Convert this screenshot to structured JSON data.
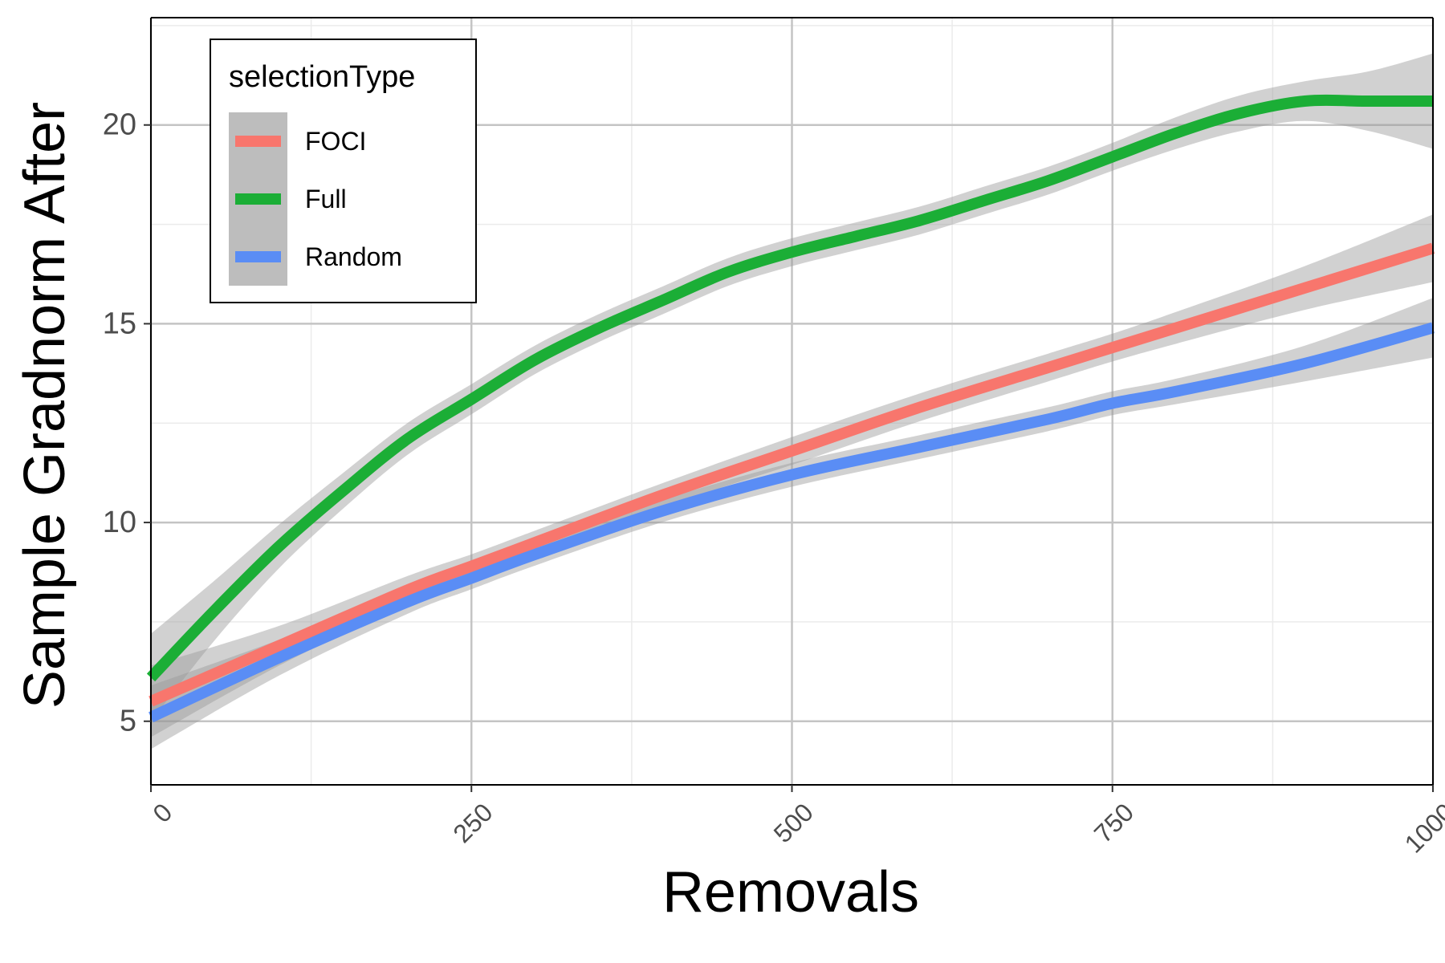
{
  "chart_data": {
    "type": "line",
    "xlabel": "Removals",
    "ylabel": "Sample Gradnorm After",
    "xlim": [
      0,
      1000
    ],
    "ylim": [
      3.4,
      22.7
    ],
    "x_ticks": [
      0,
      250,
      500,
      750,
      1000
    ],
    "x_tick_labels": [
      "0",
      "250",
      "500",
      "750",
      "1000"
    ],
    "y_ticks": [
      5,
      10,
      15,
      20
    ],
    "y_tick_labels": [
      "5",
      "10",
      "15",
      "20"
    ],
    "grid": true,
    "legend": {
      "title": "selectionType",
      "placement": "top-left (inside plot)",
      "entries": [
        "FOCI",
        "Full",
        "Random"
      ]
    },
    "series": [
      {
        "name": "FOCI",
        "color": "#F8766D",
        "x": [
          0,
          100,
          200,
          250,
          300,
          400,
          500,
          600,
          700,
          750,
          800,
          900,
          1000
        ],
        "y": [
          5.5,
          6.9,
          8.3,
          8.9,
          9.5,
          10.7,
          11.8,
          12.9,
          13.9,
          14.4,
          14.9,
          15.9,
          16.9
        ],
        "ci_halfwidth": [
          0.9,
          0.5,
          0.35,
          0.3,
          0.3,
          0.3,
          0.35,
          0.35,
          0.35,
          0.35,
          0.4,
          0.55,
          0.85
        ]
      },
      {
        "name": "Full",
        "color": "#1BAE36",
        "x": [
          0,
          50,
          100,
          150,
          200,
          250,
          300,
          350,
          400,
          450,
          500,
          550,
          600,
          650,
          700,
          750,
          800,
          850,
          900,
          950,
          1000
        ],
        "y": [
          6.1,
          7.8,
          9.4,
          10.8,
          12.1,
          13.1,
          14.1,
          14.9,
          15.6,
          16.3,
          16.8,
          17.2,
          17.6,
          18.1,
          18.6,
          19.2,
          19.8,
          20.3,
          20.6,
          20.6,
          20.6
        ],
        "ci_halfwidth": [
          1.1,
          0.75,
          0.55,
          0.45,
          0.4,
          0.38,
          0.36,
          0.35,
          0.35,
          0.35,
          0.35,
          0.35,
          0.35,
          0.35,
          0.35,
          0.35,
          0.4,
          0.45,
          0.5,
          0.75,
          1.2
        ]
      },
      {
        "name": "Random",
        "color": "#5A8DF5",
        "x": [
          0,
          100,
          200,
          250,
          300,
          400,
          500,
          600,
          700,
          750,
          800,
          900,
          1000
        ],
        "y": [
          5.1,
          6.6,
          8.0,
          8.6,
          9.2,
          10.3,
          11.2,
          11.9,
          12.6,
          13.0,
          13.3,
          14.0,
          14.9
        ],
        "ci_halfwidth": [
          0.8,
          0.45,
          0.3,
          0.28,
          0.28,
          0.28,
          0.3,
          0.3,
          0.3,
          0.3,
          0.32,
          0.45,
          0.75
        ]
      }
    ]
  }
}
